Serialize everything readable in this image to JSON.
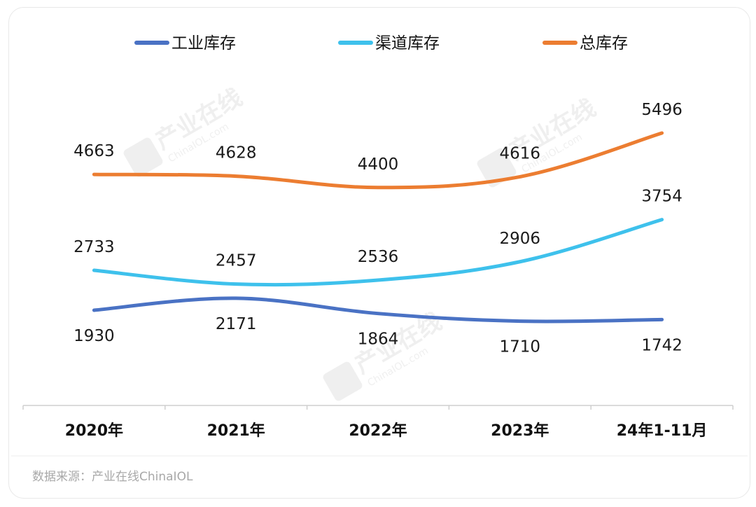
{
  "chart_data": {
    "type": "line",
    "categories": [
      "2020年",
      "2021年",
      "2022年",
      "2023年",
      "24年1-11月"
    ],
    "series": [
      {
        "name": "工业库存",
        "color": "#4a72c4",
        "values": [
          1930,
          2171,
          1864,
          1710,
          1742
        ],
        "label_pos": "below"
      },
      {
        "name": "渠道库存",
        "color": "#3ec1ec",
        "values": [
          2733,
          2457,
          2536,
          2906,
          3754
        ],
        "label_pos": "above"
      },
      {
        "name": "总库存",
        "color": "#ec7d31",
        "values": [
          4663,
          4628,
          4400,
          4616,
          5496
        ],
        "label_pos": "above"
      }
    ],
    "grid": false,
    "legend_position": "top",
    "source": "数据来源：产业在线ChinaIOL"
  },
  "watermark": {
    "text": "产业在线",
    "subtext": "ChinaIOL.com"
  }
}
